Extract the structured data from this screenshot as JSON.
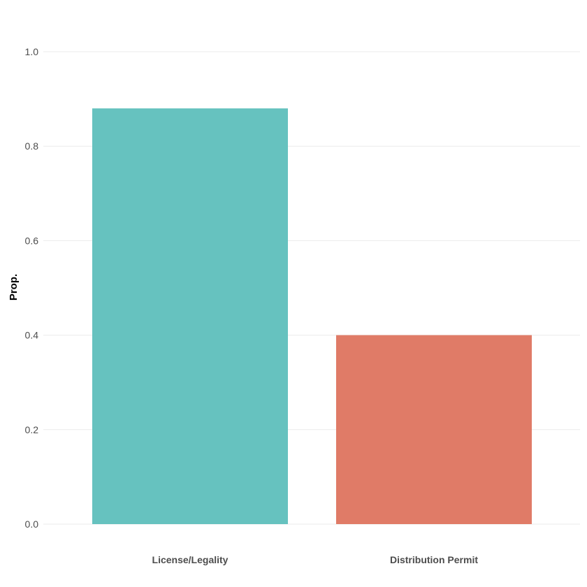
{
  "chart_data": {
    "type": "bar",
    "title": "",
    "xlabel": "",
    "ylabel": "Prop.",
    "categories": [
      "License/Legality",
      "Distribution Permit"
    ],
    "values": [
      0.88,
      0.4
    ],
    "colors": [
      "#66c2bf",
      "#e07b67"
    ],
    "ylim": [
      0,
      1.0
    ],
    "yticks": [
      "0.0",
      "0.2",
      "0.4",
      "0.6",
      "0.8",
      "1.0"
    ],
    "grid": true,
    "legend": "none"
  }
}
